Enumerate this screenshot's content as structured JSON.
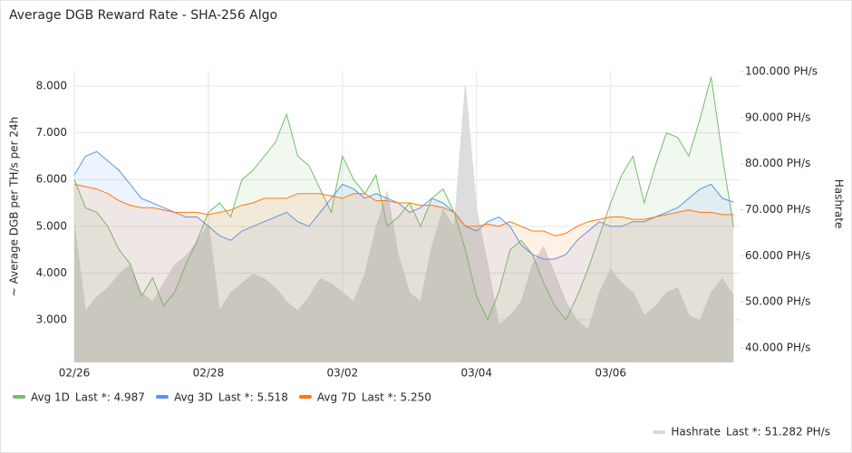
{
  "chart_data": {
    "type": "line",
    "title": "Average DGB Reward Rate - SHA-256 Algo",
    "ylabel": "~ Average DGB per TH/s per 24h",
    "y2label": "Hashrate",
    "x": [
      0,
      4,
      8,
      12,
      16,
      20,
      24,
      28,
      32,
      36,
      40,
      44,
      48,
      52,
      56,
      60,
      64,
      68,
      72,
      76,
      80,
      84,
      88,
      92,
      96,
      100,
      104,
      108,
      112,
      116,
      120,
      124,
      128,
      132,
      136,
      140,
      144,
      148,
      152,
      156,
      160,
      164,
      168,
      172,
      176,
      180,
      184,
      188,
      192,
      196,
      200,
      204,
      208,
      212,
      216,
      220,
      224,
      228,
      232,
      236
    ],
    "xlim": [
      0,
      238.5
    ],
    "xticks": [
      {
        "value": 0,
        "label": "02/26"
      },
      {
        "value": 48,
        "label": "02/28"
      },
      {
        "value": 96,
        "label": "03/02"
      },
      {
        "value": 144,
        "label": "03/04"
      },
      {
        "value": 192,
        "label": "03/06"
      }
    ],
    "ylim": [
      2.09,
      8.33
    ],
    "yticks": [
      {
        "value": 3,
        "label": "3.000"
      },
      {
        "value": 4,
        "label": "4.000"
      },
      {
        "value": 5,
        "label": "5.000"
      },
      {
        "value": 6,
        "label": "6.000"
      },
      {
        "value": 7,
        "label": "7.000"
      },
      {
        "value": 8,
        "label": "8.000"
      }
    ],
    "y2lim": [
      36.85,
      100.2
    ],
    "y2ticks": [
      {
        "value": 40,
        "label": "40.000 PH/s"
      },
      {
        "value": 50,
        "label": "50.000 PH/s"
      },
      {
        "value": 60,
        "label": "60.000 PH/s"
      },
      {
        "value": 70,
        "label": "70.000 PH/s"
      },
      {
        "value": 80,
        "label": "80.000 PH/s"
      },
      {
        "value": 90,
        "label": "90.000 PH/s"
      },
      {
        "value": 100,
        "label": "100.000 PH/s"
      }
    ],
    "grid": true,
    "series": [
      {
        "name": "Hashrate",
        "color": "#d9d9d9",
        "axis": "y2",
        "fill": true,
        "legend_label": "Last *: 51.282 PH/s",
        "values": [
          67,
          48,
          51,
          53,
          56,
          58,
          52,
          50,
          54,
          58,
          60,
          63,
          67,
          48,
          52,
          54,
          56,
          55,
          53,
          50,
          48,
          51,
          55,
          54,
          52,
          50,
          56,
          66,
          74,
          60,
          52,
          50,
          62,
          70,
          66,
          97,
          70,
          58,
          45,
          47,
          50,
          58,
          62,
          56,
          50,
          46,
          44,
          52,
          57,
          54,
          52,
          47,
          49,
          52,
          53,
          47,
          46,
          52,
          55,
          51.282
        ]
      },
      {
        "name": "Avg 1D",
        "color": "#73bf69",
        "legend_label": "Last *: 4.987",
        "values": [
          6.0,
          5.4,
          5.3,
          5.0,
          4.5,
          4.2,
          3.5,
          3.9,
          3.3,
          3.6,
          4.2,
          4.7,
          5.3,
          5.5,
          5.2,
          6.0,
          6.2,
          6.5,
          6.8,
          7.4,
          6.5,
          6.3,
          5.8,
          5.3,
          6.5,
          6.0,
          5.7,
          6.1,
          5.0,
          5.2,
          5.5,
          5.0,
          5.6,
          5.8,
          5.3,
          4.5,
          3.5,
          3.0,
          3.6,
          4.5,
          4.7,
          4.4,
          3.8,
          3.3,
          3.0,
          3.5,
          4.1,
          4.8,
          5.5,
          6.1,
          6.5,
          5.5,
          6.3,
          7.0,
          6.9,
          6.5,
          7.3,
          8.2,
          6.5,
          4.987
        ]
      },
      {
        "name": "Avg 3D",
        "color": "#5794f2",
        "legend_label": "Last *: 5.518",
        "values": [
          6.1,
          6.5,
          6.6,
          6.4,
          6.2,
          5.9,
          5.6,
          5.5,
          5.4,
          5.3,
          5.2,
          5.2,
          5.0,
          4.8,
          4.7,
          4.9,
          5.0,
          5.1,
          5.2,
          5.3,
          5.1,
          5.0,
          5.3,
          5.6,
          5.9,
          5.8,
          5.6,
          5.7,
          5.6,
          5.5,
          5.3,
          5.4,
          5.6,
          5.5,
          5.3,
          5.0,
          4.9,
          5.1,
          5.2,
          5.0,
          4.6,
          4.4,
          4.3,
          4.3,
          4.4,
          4.7,
          4.9,
          5.1,
          5.0,
          5.0,
          5.1,
          5.1,
          5.2,
          5.3,
          5.4,
          5.6,
          5.8,
          5.9,
          5.6,
          5.518
        ]
      },
      {
        "name": "Avg 7D",
        "color": "#ff780a",
        "legend_label": "Last *: 5.250",
        "values": [
          5.9,
          5.85,
          5.8,
          5.7,
          5.55,
          5.45,
          5.4,
          5.4,
          5.35,
          5.3,
          5.3,
          5.3,
          5.25,
          5.3,
          5.35,
          5.45,
          5.5,
          5.6,
          5.6,
          5.6,
          5.7,
          5.7,
          5.7,
          5.65,
          5.6,
          5.7,
          5.7,
          5.55,
          5.55,
          5.5,
          5.5,
          5.45,
          5.45,
          5.4,
          5.3,
          5.0,
          5.0,
          5.05,
          5.0,
          5.1,
          5.0,
          4.9,
          4.9,
          4.8,
          4.85,
          5.0,
          5.1,
          5.15,
          5.2,
          5.2,
          5.15,
          5.15,
          5.2,
          5.25,
          5.3,
          5.35,
          5.3,
          5.3,
          5.25,
          5.25
        ]
      }
    ]
  }
}
